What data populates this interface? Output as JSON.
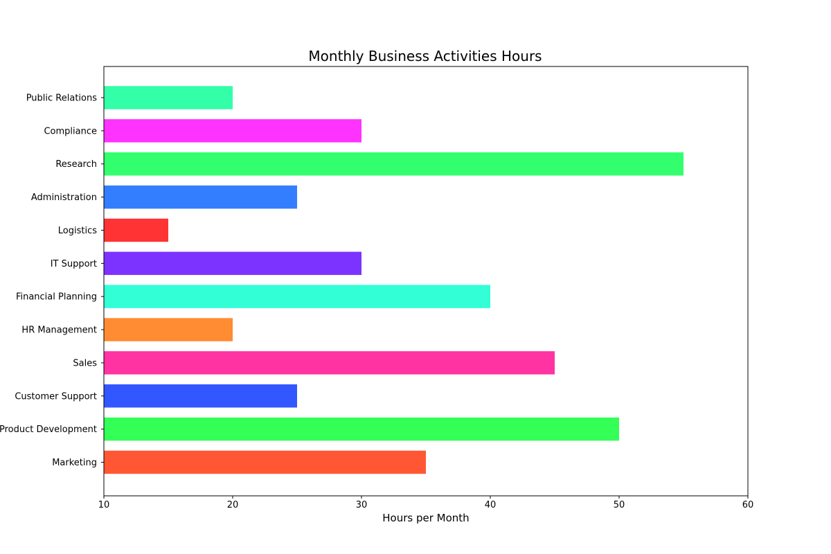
{
  "chart_data": {
    "type": "bar",
    "orientation": "horizontal",
    "title": "Monthly Business Activities Hours",
    "xlabel": "Hours per Month",
    "ylabel": "",
    "xlim": [
      10,
      60
    ],
    "xticks": [
      10,
      20,
      30,
      40,
      50,
      60
    ],
    "grid": false,
    "categories": [
      "Marketing",
      "Product Development",
      "Customer Support",
      "Sales",
      "HR Management",
      "Financial Planning",
      "IT Support",
      "Logistics",
      "Administration",
      "Research",
      "Compliance",
      "Public Relations"
    ],
    "values": [
      35,
      50,
      25,
      45,
      20,
      40,
      30,
      15,
      25,
      55,
      30,
      20
    ],
    "colors": [
      "#FF5733",
      "#33FF57",
      "#3357FF",
      "#FF33A1",
      "#FF8C33",
      "#33FFD7",
      "#7D33FF",
      "#FF3333",
      "#337DFF",
      "#33FF6E",
      "#FF33FF",
      "#33FFA8"
    ]
  }
}
